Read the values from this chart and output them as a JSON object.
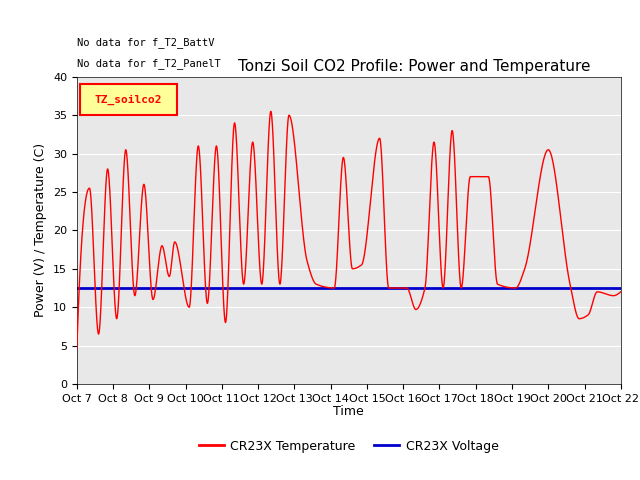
{
  "title": "Tonzi Soil CO2 Profile: Power and Temperature",
  "ylabel": "Power (V) / Temperature (C)",
  "xlabel": "Time",
  "ylim": [
    0,
    40
  ],
  "yticks": [
    0,
    5,
    10,
    15,
    20,
    25,
    30,
    35,
    40
  ],
  "xtick_labels": [
    "Oct 7",
    "Oct 8",
    "Oct 9",
    "Oct 10",
    "Oct 11",
    "Oct 12",
    "Oct 13",
    "Oct 14",
    "Oct 15",
    "Oct 16",
    "Oct 17",
    "Oct 18",
    "Oct 19",
    "Oct 20",
    "Oct 21",
    "Oct 22"
  ],
  "no_data_text1": "No data for f_T2_BattV",
  "no_data_text2": "No data for f_T2_PanelT",
  "legend_box_label": "TZ_soilco2",
  "legend_label_temp": "CR23X Temperature",
  "legend_label_volt": "CR23X Voltage",
  "temp_color": "#ff0000",
  "volt_color": "#0000cc",
  "volt_value": 12.5,
  "background_color": "#e8e8e8",
  "title_fontsize": 11,
  "axis_label_fontsize": 9,
  "tick_fontsize": 8,
  "figwidth": 6.4,
  "figheight": 4.8,
  "peak_days": [
    0.35,
    0.85,
    1.35,
    1.85,
    2.35,
    2.7,
    3.35,
    3.85,
    4.35,
    4.85,
    5.35,
    5.85,
    6.35,
    7.35,
    7.85,
    8.35,
    9.35,
    9.85,
    10.35,
    10.85,
    11.35,
    12.35,
    13.0,
    13.85,
    14.35
  ],
  "peak_vals": [
    25.5,
    28.0,
    30.5,
    26.0,
    18.0,
    18.5,
    31.0,
    31.0,
    34.0,
    31.5,
    35.5,
    35.0,
    16.0,
    29.5,
    15.5,
    32.0,
    9.7,
    31.5,
    33.0,
    27.0,
    27.0,
    15.0,
    30.5,
    8.5,
    12.0
  ],
  "trough_days": [
    0.0,
    0.6,
    1.1,
    1.6,
    2.1,
    2.55,
    3.1,
    3.6,
    4.1,
    4.6,
    5.1,
    5.6,
    6.6,
    7.1,
    7.6,
    8.6,
    9.1,
    9.6,
    10.1,
    10.6,
    11.6,
    12.1,
    13.6,
    14.1,
    14.8,
    15.0
  ],
  "trough_vals": [
    4.5,
    6.5,
    8.5,
    11.5,
    11.0,
    14.0,
    10.0,
    10.5,
    8.0,
    13.0,
    13.0,
    13.0,
    13.0,
    12.5,
    15.0,
    12.5,
    12.5,
    12.5,
    12.5,
    12.5,
    13.0,
    12.5,
    13.0,
    9.0,
    11.5,
    12.0
  ]
}
